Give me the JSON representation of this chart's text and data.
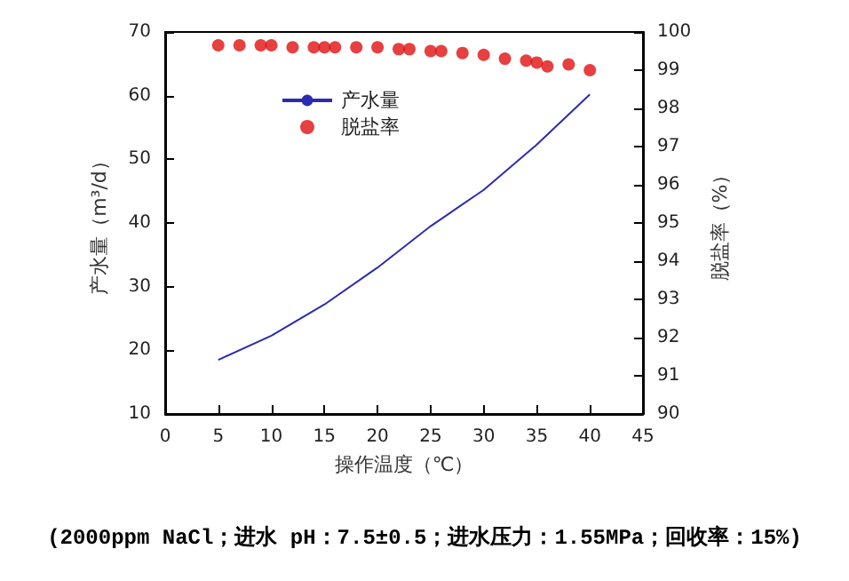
{
  "chart_data": {
    "type": "line",
    "xlabel": "操作温度（℃）",
    "ylabel": "产水量（m³/d）",
    "y2label": "脱盐率（%）",
    "annotations": [
      "(2000ppm NaCl；进水 pH：7.5±0.5；进水压力：1.55MPa；回收率：15%)"
    ],
    "xlim": [
      0,
      45
    ],
    "xticks": [
      0,
      5,
      10,
      15,
      20,
      25,
      30,
      35,
      40,
      45
    ],
    "ylim": [
      10,
      70
    ],
    "yticks": [
      10,
      20,
      30,
      40,
      50,
      60,
      70
    ],
    "y2lim": [
      90,
      100
    ],
    "y2ticks": [
      90,
      91,
      92,
      93,
      94,
      95,
      96,
      97,
      98,
      99,
      100
    ],
    "legend": "top left",
    "grid": false,
    "series": [
      {
        "name": "产水量",
        "color": "#2b2bb0",
        "marker": "none",
        "line_style": "solid",
        "x": [
          5,
          10,
          15,
          20,
          25,
          30,
          35,
          40
        ],
        "values": [
          18.5,
          22.3,
          27.2,
          33,
          39.5,
          45.2,
          52.3,
          60.2
        ]
      },
      {
        "name": "脱盐率",
        "type": "scatter",
        "axis": "y2",
        "color": "#e01010",
        "marker": "circle",
        "x": [
          5,
          7,
          9,
          10,
          12,
          14,
          15,
          16,
          18,
          20,
          22,
          23,
          25,
          26,
          28,
          30,
          32,
          34,
          35,
          36,
          38,
          40
        ],
        "values": [
          99.65,
          99.65,
          99.65,
          99.65,
          99.6,
          99.6,
          99.6,
          99.6,
          99.6,
          99.6,
          99.55,
          99.55,
          99.5,
          99.5,
          99.45,
          99.4,
          99.3,
          99.25,
          99.2,
          99.1,
          99.15,
          99.0
        ]
      }
    ]
  }
}
